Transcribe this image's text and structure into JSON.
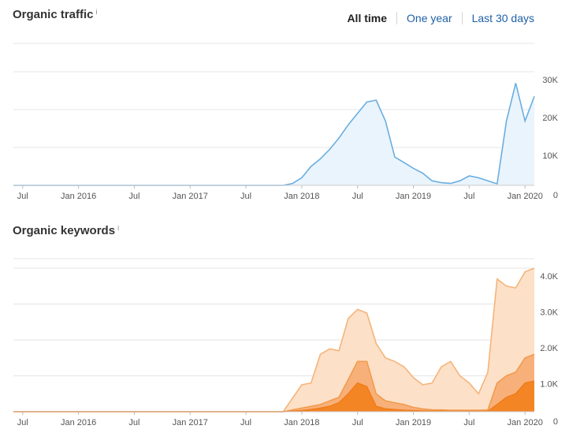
{
  "traffic_section": {
    "title": "Organic traffic",
    "info": "i"
  },
  "keywords_section": {
    "title": "Organic keywords",
    "info": "i"
  },
  "range_tabs": [
    {
      "label": "All time",
      "active": true
    },
    {
      "label": "One year",
      "active": false
    },
    {
      "label": "Last 30 days",
      "active": false
    }
  ],
  "chart_data": [
    {
      "type": "area",
      "title": "Organic traffic",
      "x_ticks": [
        "Jul",
        "Jan 2016",
        "Jul",
        "Jan 2017",
        "Jul",
        "Jan 2018",
        "Jul",
        "Jan 2019",
        "Jul",
        "Jan 2020"
      ],
      "x_range": [
        "2015-06",
        "2020-02"
      ],
      "y_ticks": [
        "30K",
        "20K",
        "10K",
        "0"
      ],
      "ylim": [
        0,
        35000
      ],
      "grid": true,
      "color": "#6aaee0",
      "fill": "#eaf4fc",
      "series": [
        {
          "x": [
            "2015-06",
            "2017-11",
            "2017-12",
            "2018-01",
            "2018-02",
            "2018-03",
            "2018-04",
            "2018-05",
            "2018-06",
            "2018-07",
            "2018-08",
            "2018-09",
            "2018-10",
            "2018-11",
            "2018-12",
            "2019-01",
            "2019-02",
            "2019-03",
            "2019-04",
            "2019-05",
            "2019-06",
            "2019-07",
            "2019-08",
            "2019-09",
            "2019-10",
            "2019-11",
            "2019-12",
            "2020-01",
            "2020-02"
          ],
          "values": [
            0,
            0,
            500,
            2000,
            5000,
            7000,
            9500,
            12500,
            16000,
            19000,
            22000,
            22500,
            17000,
            7500,
            6000,
            4500,
            3200,
            1200,
            700,
            500,
            1200,
            2500,
            2000,
            1200,
            400,
            17000,
            27000,
            17000,
            23500
          ]
        }
      ]
    },
    {
      "type": "area",
      "title": "Organic keywords",
      "x_ticks": [
        "Jul",
        "Jan 2016",
        "Jul",
        "Jan 2017",
        "Jul",
        "Jan 2018",
        "Jul",
        "Jan 2019",
        "Jul",
        "Jan 2020"
      ],
      "x_range": [
        "2015-06",
        "2020-02"
      ],
      "y_ticks": [
        "4.0K",
        "3.0K",
        "2.0K",
        "1.0K",
        "0"
      ],
      "ylim": [
        0,
        4000
      ],
      "grid": true,
      "series": [
        {
          "color": "#f5b47a",
          "fill": "#fde0c8",
          "x": [
            "2015-06",
            "2017-11",
            "2018-01",
            "2018-02",
            "2018-03",
            "2018-04",
            "2018-05",
            "2018-06",
            "2018-07",
            "2018-08",
            "2018-09",
            "2018-10",
            "2018-11",
            "2018-12",
            "2019-01",
            "2019-02",
            "2019-03",
            "2019-04",
            "2019-05",
            "2019-06",
            "2019-07",
            "2019-08",
            "2019-09",
            "2019-10",
            "2019-11",
            "2019-12",
            "2020-01",
            "2020-02"
          ],
          "values": [
            0,
            0,
            750,
            800,
            1600,
            1750,
            1700,
            2600,
            2850,
            2750,
            1900,
            1500,
            1400,
            1250,
            950,
            750,
            800,
            1250,
            1400,
            1000,
            800,
            500,
            1100,
            3700,
            3500,
            3450,
            3900,
            4000
          ]
        },
        {
          "color": "#f29b4c",
          "fill": "#f8b07a",
          "x": [
            "2015-06",
            "2017-11",
            "2018-01",
            "2018-02",
            "2018-03",
            "2018-04",
            "2018-05",
            "2018-06",
            "2018-07",
            "2018-08",
            "2018-09",
            "2018-10",
            "2018-11",
            "2018-12",
            "2019-01",
            "2019-02",
            "2019-03",
            "2019-04",
            "2019-05",
            "2019-06",
            "2019-07",
            "2019-08",
            "2019-09",
            "2019-10",
            "2019-11",
            "2019-12",
            "2020-01",
            "2020-02"
          ],
          "values": [
            0,
            0,
            100,
            150,
            200,
            300,
            400,
            900,
            1400,
            1400,
            500,
            300,
            250,
            200,
            120,
            80,
            50,
            50,
            40,
            40,
            40,
            40,
            50,
            800,
            1000,
            1100,
            1500,
            1600
          ]
        },
        {
          "color": "#f07d1c",
          "fill": "#f38525",
          "x": [
            "2015-06",
            "2017-11",
            "2018-01",
            "2018-02",
            "2018-03",
            "2018-04",
            "2018-05",
            "2018-06",
            "2018-07",
            "2018-08",
            "2018-09",
            "2018-10",
            "2018-11",
            "2018-12",
            "2019-01",
            "2019-02",
            "2019-03",
            "2019-04",
            "2019-05",
            "2019-06",
            "2019-07",
            "2019-08",
            "2019-09",
            "2019-10",
            "2019-11",
            "2019-12",
            "2020-01",
            "2020-02"
          ],
          "values": [
            0,
            0,
            30,
            60,
            100,
            150,
            250,
            500,
            800,
            700,
            150,
            80,
            60,
            40,
            30,
            20,
            15,
            15,
            10,
            10,
            10,
            10,
            10,
            200,
            400,
            500,
            800,
            850
          ]
        }
      ]
    }
  ]
}
